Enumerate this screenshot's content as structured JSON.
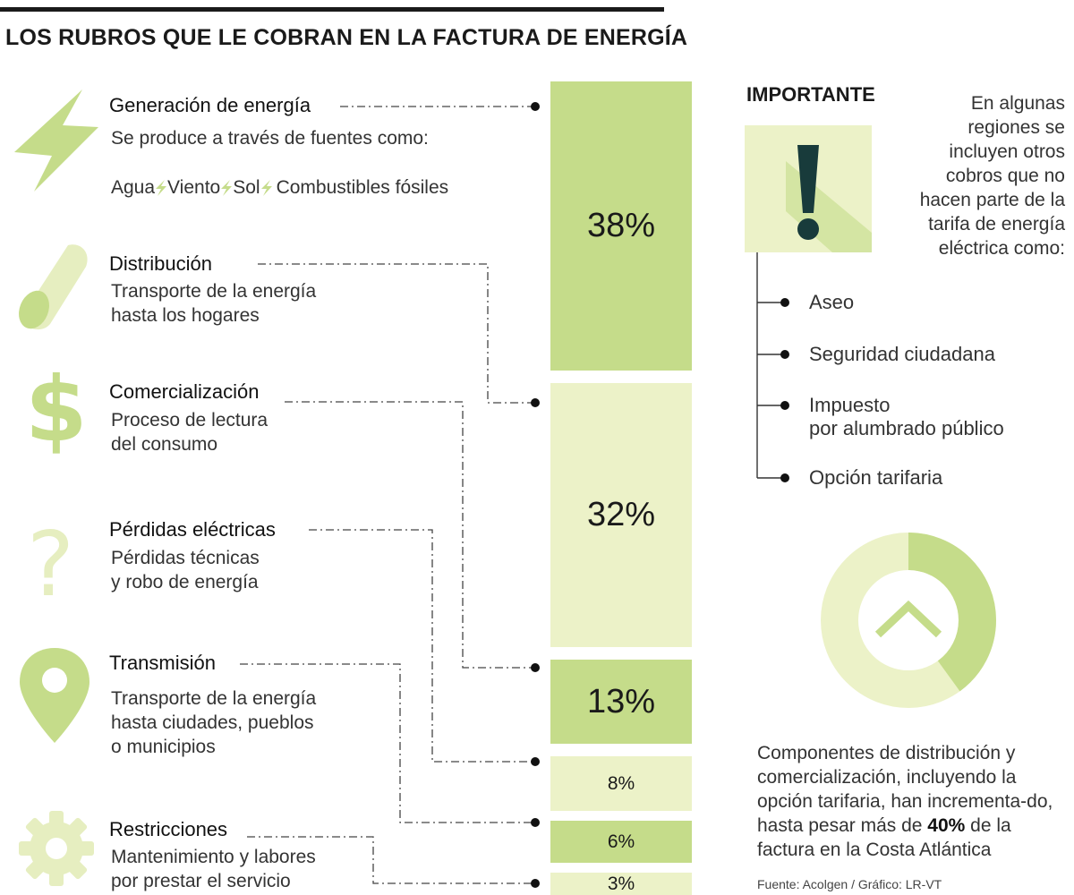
{
  "title": "LOS RUBROS QUE LE COBRAN EN LA FACTURA DE ENERGÍA",
  "categories": [
    {
      "name": "Generación de energía",
      "desc_lines": [
        "Se produce a través de fuentes como:"
      ],
      "icon": "lightning-icon",
      "sources": [
        "Agua",
        "Viento",
        "Sol",
        "Combustibles fósiles"
      ]
    },
    {
      "name": "Distribución",
      "desc_lines": [
        "Transporte de la energía",
        "hasta los hogares"
      ],
      "icon": "cable-icon"
    },
    {
      "name": "Comercialización",
      "desc_lines": [
        "Proceso de lectura",
        "del consumo"
      ],
      "icon": "dollar-icon"
    },
    {
      "name": "Pérdidas eléctricas",
      "desc_lines": [
        "Pérdidas técnicas",
        "y robo de energía"
      ],
      "icon": "question-icon"
    },
    {
      "name": "Transmisión",
      "desc_lines": [
        "Transporte de la energía",
        "hasta ciudades, pueblos",
        "o municipios"
      ],
      "icon": "location-pin-icon"
    },
    {
      "name": "Restricciones",
      "desc_lines": [
        "Mantenimiento y labores",
        "por prestar el servicio"
      ],
      "icon": "gear-icon"
    }
  ],
  "bars": [
    {
      "label": "38%",
      "value": 38
    },
    {
      "label": "32%",
      "value": 32
    },
    {
      "label": "13%",
      "value": 13
    },
    {
      "label": "8%",
      "value": 8
    },
    {
      "label": "6%",
      "value": 6
    },
    {
      "label": "3%",
      "value": 3
    }
  ],
  "important": {
    "title": "IMPORTANTE",
    "text_lines": [
      "En algunas",
      "regiones se",
      "incluyen otros",
      "cobros que no",
      "hacen parte de la",
      "tarifa de energía",
      "eléctrica como:"
    ],
    "icon": "exclamation-icon",
    "items": [
      {
        "lines": [
          "Aseo"
        ]
      },
      {
        "lines": [
          "Seguridad ciudadana"
        ]
      },
      {
        "lines": [
          "Impuesto",
          "por alumbrado público"
        ]
      },
      {
        "lines": [
          "Opción tarifaria"
        ]
      }
    ]
  },
  "donut": {
    "value_fraction": 0.4,
    "icon": "chevron-up-icon"
  },
  "note": {
    "text_before": "Componentes de distribución y comercialización, incluyendo la opción tarifaria, han incrementa-do, hasta pesar más de ",
    "highlight": "40%",
    "text_after": " de la factura en la Costa Atlántica"
  },
  "source": "Fuente: Acolgen / Gráfico: LR-VT",
  "colors": {
    "dark_green": "#c5dc8a",
    "light_green": "#ecf2c8",
    "icon_green": "#c5dc8a",
    "icon_light": "#e6eec0",
    "text": "#1a1a1a"
  }
}
